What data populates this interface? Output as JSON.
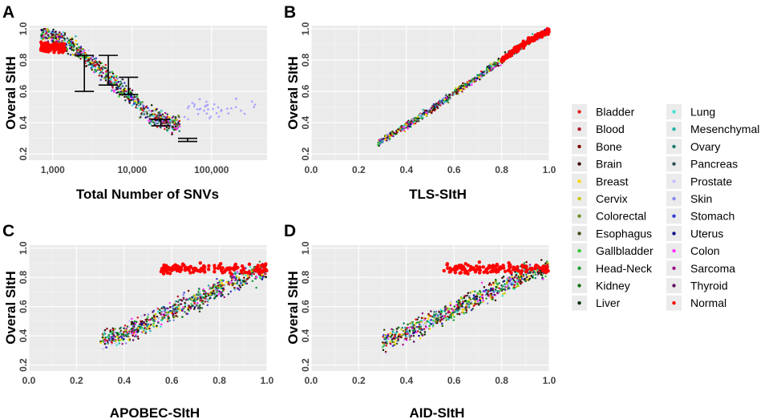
{
  "chart_data": [
    {
      "panel": "A",
      "type": "scatter",
      "xscale": "log",
      "xlabel": "Total Number of SNVs",
      "ylabel": "Overal SItH",
      "xlim": [
        500,
        500000
      ],
      "ylim": [
        0.16,
        1.02
      ],
      "xticks": [
        1000,
        10000,
        100000
      ],
      "xtick_labels": [
        "1,000",
        "10,000",
        "100,000"
      ],
      "yticks": [
        0.2,
        0.4,
        0.6,
        0.8,
        1.0
      ],
      "ytick_labels": [
        "0.2",
        "0.4",
        "0.6",
        "0.8",
        "1.0"
      ],
      "trend": [
        [
          600,
          0.99
        ],
        [
          900,
          0.96
        ],
        [
          1500,
          0.91
        ],
        [
          2500,
          0.82
        ],
        [
          4000,
          0.73
        ],
        [
          6000,
          0.65
        ],
        [
          9000,
          0.58
        ],
        [
          13000,
          0.49
        ],
        [
          18000,
          0.44
        ],
        [
          25000,
          0.41
        ],
        [
          35000,
          0.39
        ]
      ],
      "error_bars": [
        {
          "x": 2500,
          "low": 0.6,
          "high": 0.83
        },
        {
          "x": 5000,
          "low": 0.64,
          "high": 0.83
        },
        {
          "x": 9000,
          "low": 0.58,
          "high": 0.69
        },
        {
          "x": 23000,
          "low": 0.38,
          "high": 0.42
        },
        {
          "x": 50000,
          "low": 0.28,
          "high": 0.3
        }
      ]
    },
    {
      "panel": "B",
      "type": "scatter",
      "xlabel": "TLS-SItH",
      "ylabel": "Overal SItH",
      "xlim": [
        0,
        1
      ],
      "ylim": [
        0.16,
        1.02
      ],
      "xticks": [
        0,
        0.2,
        0.4,
        0.6,
        0.8,
        1.0
      ],
      "xtick_labels": [
        "0.0",
        "0.2",
        "0.4",
        "0.6",
        "0.8",
        "1.0"
      ],
      "yticks": [
        0.2,
        0.4,
        0.6,
        0.8,
        1.0
      ],
      "ytick_labels": [
        "0.2",
        "0.4",
        "0.6",
        "0.8",
        "1.0"
      ],
      "trend": [
        [
          0.28,
          0.27
        ],
        [
          0.4,
          0.38
        ],
        [
          0.5,
          0.48
        ],
        [
          0.6,
          0.59
        ],
        [
          0.7,
          0.69
        ],
        [
          0.8,
          0.8
        ],
        [
          0.9,
          0.91
        ],
        [
          1.0,
          0.99
        ]
      ]
    },
    {
      "panel": "C",
      "type": "scatter",
      "xlabel": "APOBEC-SItH",
      "ylabel": "Overal SItH",
      "xlim": [
        0,
        1
      ],
      "ylim": [
        0.16,
        1.02
      ],
      "xticks": [
        0,
        0.2,
        0.4,
        0.6,
        0.8,
        1.0
      ],
      "xtick_labels": [
        "0.0",
        "0.2",
        "0.4",
        "0.6",
        "0.8",
        "1.0"
      ],
      "yticks": [
        0.2,
        0.4,
        0.6,
        0.8,
        1.0
      ],
      "ytick_labels": [
        "0.2",
        "0.4",
        "0.6",
        "0.8",
        "1.0"
      ],
      "trend": [
        [
          0.3,
          0.37
        ],
        [
          0.4,
          0.41
        ],
        [
          0.5,
          0.49
        ],
        [
          0.6,
          0.57
        ],
        [
          0.7,
          0.64
        ],
        [
          0.8,
          0.72
        ],
        [
          0.9,
          0.8
        ],
        [
          1.0,
          0.85
        ]
      ]
    },
    {
      "panel": "D",
      "type": "scatter",
      "xlabel": "AID-SItH",
      "ylabel": "Overal SItH",
      "xlim": [
        0,
        1
      ],
      "ylim": [
        0.16,
        1.02
      ],
      "xticks": [
        0,
        0.2,
        0.4,
        0.6,
        0.8,
        1.0
      ],
      "xtick_labels": [
        "0.0",
        "0.2",
        "0.4",
        "0.6",
        "0.8",
        "1.0"
      ],
      "yticks": [
        0.2,
        0.4,
        0.6,
        0.8,
        1.0
      ],
      "ytick_labels": [
        "0.2",
        "0.4",
        "0.6",
        "0.8",
        "1.0"
      ],
      "trend": [
        [
          0.3,
          0.36
        ],
        [
          0.4,
          0.42
        ],
        [
          0.5,
          0.5
        ],
        [
          0.6,
          0.58
        ],
        [
          0.7,
          0.66
        ],
        [
          0.8,
          0.74
        ],
        [
          0.9,
          0.82
        ],
        [
          1.0,
          0.86
        ]
      ]
    }
  ],
  "legend": {
    "entries": [
      {
        "label": "Bladder",
        "color": "#e41a1c"
      },
      {
        "label": "Blood",
        "color": "#b2182b"
      },
      {
        "label": "Bone",
        "color": "#7f0000"
      },
      {
        "label": "Brain",
        "color": "#3d0a0a"
      },
      {
        "label": "Breast",
        "color": "#ffd700"
      },
      {
        "label": "Cervix",
        "color": "#c8c800"
      },
      {
        "label": "Colorectal",
        "color": "#6b8e23"
      },
      {
        "label": "Esophagus",
        "color": "#3d4a17"
      },
      {
        "label": "Gallbladder",
        "color": "#32cd32"
      },
      {
        "label": "Head-Neck",
        "color": "#1f9e3a"
      },
      {
        "label": "Kidney",
        "color": "#0b6e0b"
      },
      {
        "label": "Liver",
        "color": "#0a2e0a"
      },
      {
        "label": "Lung",
        "color": "#40e0d0"
      },
      {
        "label": "Mesenchymal",
        "color": "#20b2aa"
      },
      {
        "label": "Ovary",
        "color": "#1c7a70"
      },
      {
        "label": "Pancreas",
        "color": "#2f4f4f"
      },
      {
        "label": "Prostate",
        "color": "#c6c2ff"
      },
      {
        "label": "Skin",
        "color": "#8a87ee"
      },
      {
        "label": "Stomach",
        "color": "#3a3ad6"
      },
      {
        "label": "Uterus",
        "color": "#0a0a8a"
      },
      {
        "label": "Colon",
        "color": "#ff33ff"
      },
      {
        "label": "Sarcoma",
        "color": "#a0108a"
      },
      {
        "label": "Thyroid",
        "color": "#5e0a5e"
      },
      {
        "label": "Normal",
        "color": "#ff0000"
      }
    ]
  },
  "style": {
    "panel_bg": "#ebebeb",
    "grid_major": "#ffffff",
    "grid_minor": "#f5f5f5",
    "errorbar_color": "#000000"
  }
}
